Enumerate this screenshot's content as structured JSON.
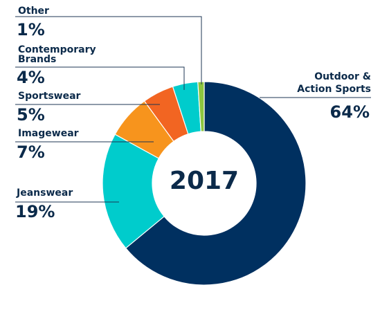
{
  "chart_data": {
    "type": "pie",
    "title": "2017",
    "slices": [
      {
        "name": "Outdoor & Action Sports",
        "line1": "Outdoor &",
        "line2": "Action Sports",
        "value": 64,
        "label": "64%",
        "color": "#003060"
      },
      {
        "name": "Jeanswear",
        "line1": "Jeanswear",
        "line2": "",
        "value": 19,
        "label": "19%",
        "color": "#00cccc"
      },
      {
        "name": "Imagewear",
        "line1": "Imagewear",
        "line2": "",
        "value": 7,
        "label": "7%",
        "color": "#f7941d"
      },
      {
        "name": "Sportswear",
        "line1": "Sportswear",
        "line2": "",
        "value": 5,
        "label": "5%",
        "color": "#f26522"
      },
      {
        "name": "Contemporary Brands",
        "line1": "Contemporary",
        "line2": "Brands",
        "value": 4,
        "label": "4%",
        "color": "#00cccc"
      },
      {
        "name": "Other",
        "line1": "Other",
        "line2": "",
        "value": 1,
        "label": "1%",
        "color": "#8dc63f"
      }
    ]
  }
}
